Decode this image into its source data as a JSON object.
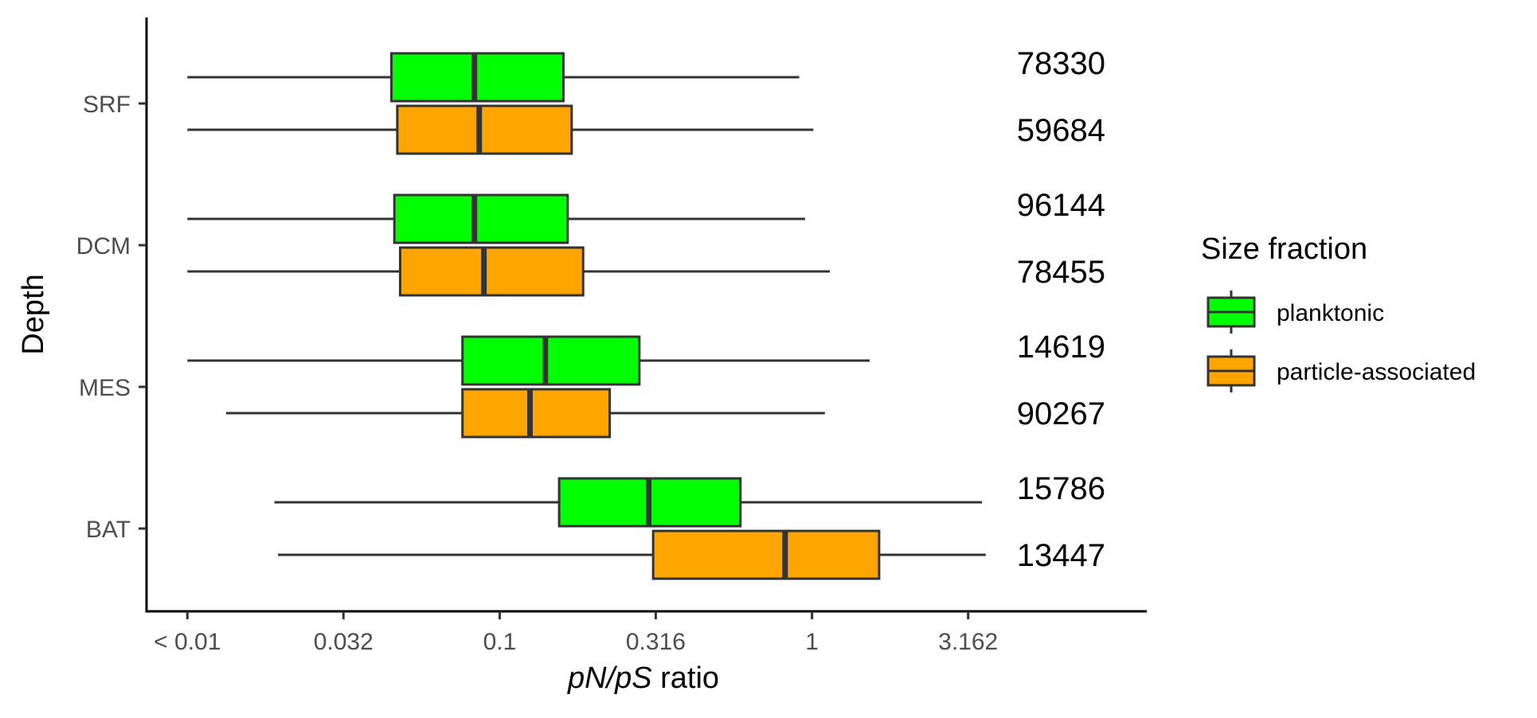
{
  "chart_data": {
    "type": "boxplot",
    "orientation": "horizontal",
    "x_scale": "log10",
    "xlabel_italic": "pN/pS",
    "xlabel_rest": "ratio",
    "ylabel": "Depth",
    "xlim": [
      0.0074,
      11.8
    ],
    "x_ticks": [
      {
        "value": 0.01,
        "label": "< 0.01"
      },
      {
        "value": 0.0316,
        "label": "0.032"
      },
      {
        "value": 0.1,
        "label": "0.1"
      },
      {
        "value": 0.316,
        "label": "0.316"
      },
      {
        "value": 1,
        "label": "1"
      },
      {
        "value": 3.162,
        "label": "3.162"
      }
    ],
    "categories": [
      "SRF",
      "DCM",
      "MES",
      "BAT"
    ],
    "legend": {
      "title": "Size fraction",
      "position": "right",
      "entries": [
        {
          "key": "planktonic",
          "label": "planktonic"
        },
        {
          "key": "particle",
          "label": "particle-associated"
        }
      ]
    },
    "colors": {
      "planktonic": "#00ff00",
      "particle": "#ffa500",
      "stroke": "#333333"
    },
    "series": [
      {
        "key": "planktonic",
        "name": "planktonic",
        "boxes": [
          {
            "category": "SRF",
            "whisker_low": 0.01,
            "q1": 0.045,
            "median": 0.083,
            "q3": 0.16,
            "whisker_high": 0.91,
            "n": "78330"
          },
          {
            "category": "DCM",
            "whisker_low": 0.01,
            "q1": 0.046,
            "median": 0.083,
            "q3": 0.165,
            "whisker_high": 0.95,
            "n": "96144"
          },
          {
            "category": "MES",
            "whisker_low": 0.01,
            "q1": 0.076,
            "median": 0.14,
            "q3": 0.28,
            "whisker_high": 1.53,
            "n": "14619"
          },
          {
            "category": "BAT",
            "whisker_low": 0.019,
            "q1": 0.155,
            "median": 0.3,
            "q3": 0.59,
            "whisker_high": 3.5,
            "n": "15786"
          }
        ]
      },
      {
        "key": "particle",
        "name": "particle-associated",
        "boxes": [
          {
            "category": "SRF",
            "whisker_low": 0.01,
            "q1": 0.047,
            "median": 0.086,
            "q3": 0.17,
            "whisker_high": 1.01,
            "n": "59684"
          },
          {
            "category": "DCM",
            "whisker_low": 0.01,
            "q1": 0.048,
            "median": 0.089,
            "q3": 0.185,
            "whisker_high": 1.14,
            "n": "78455"
          },
          {
            "category": "MES",
            "whisker_low": 0.0133,
            "q1": 0.076,
            "median": 0.125,
            "q3": 0.225,
            "whisker_high": 1.1,
            "n": "90267"
          },
          {
            "category": "BAT",
            "whisker_low": 0.0195,
            "q1": 0.31,
            "median": 0.82,
            "q3": 1.64,
            "whisker_high": 3.6,
            "n": "13447"
          }
        ]
      }
    ]
  }
}
